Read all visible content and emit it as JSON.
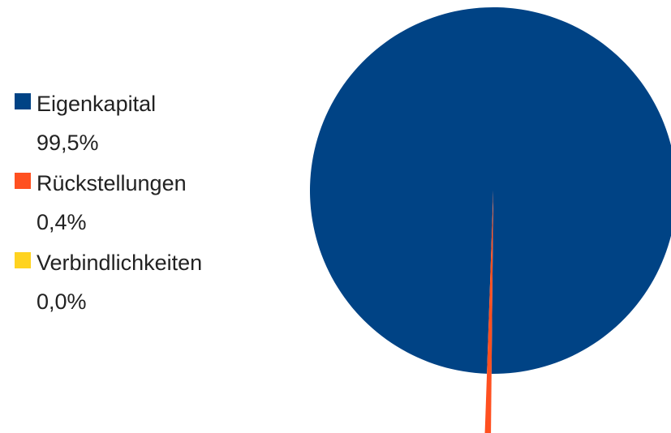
{
  "chart_data": {
    "type": "pie",
    "categories": [
      "Eigenkapital",
      "Rückstellungen",
      "Verbindlichkeiten"
    ],
    "values": [
      99.5,
      0.4,
      0.0
    ],
    "value_labels": [
      "99,5%",
      "0,4%",
      "0,0%"
    ],
    "colors": [
      "#004385",
      "#ff5020",
      "#ffd320"
    ],
    "legend": "left"
  }
}
